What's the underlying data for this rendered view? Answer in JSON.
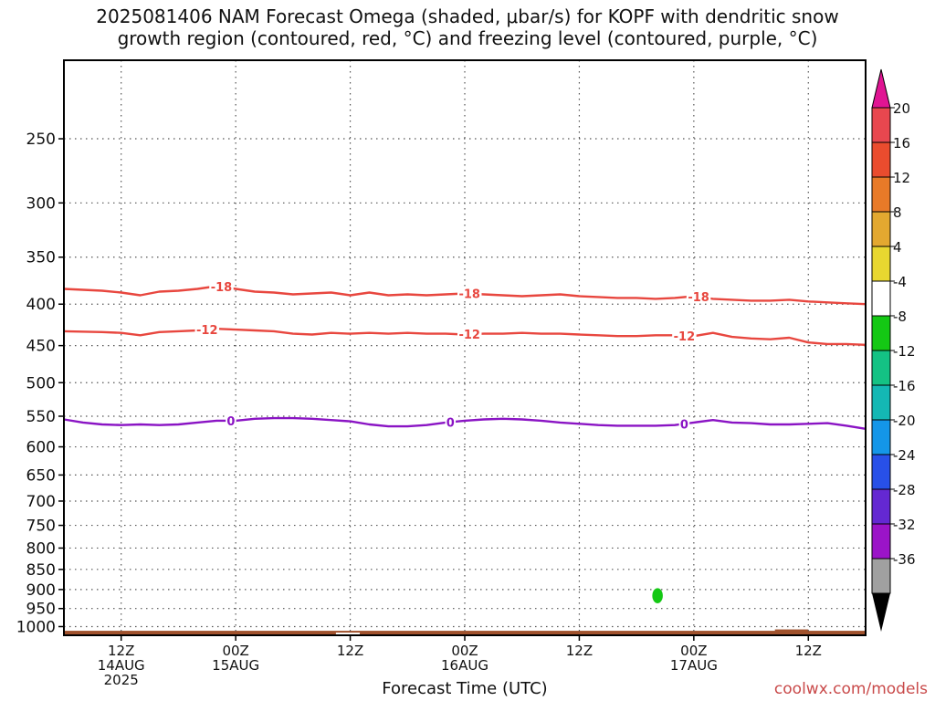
{
  "title_line1": "2025081406 NAM Forecast Omega (shaded, μbar/s) for KOPF with dendritic snow",
  "title_line2": "growth region (contoured, red, °C) and freezing level (contoured, purple, °C)",
  "credit": "coolwx.com/models",
  "chart_data": {
    "type": "heatmap",
    "xlabel": "Forecast Time (UTC)",
    "ylabel": "",
    "x_unit": "hours",
    "xlim": [
      6,
      90
    ],
    "ylim": [
      1025,
      200
    ],
    "y_scale": "log-pressure",
    "grid": true,
    "y_ticks": [
      250,
      300,
      350,
      400,
      450,
      500,
      550,
      600,
      650,
      700,
      750,
      800,
      850,
      900,
      950,
      1000
    ],
    "x_ticks": [
      {
        "x": 12,
        "lines": [
          "12Z",
          "14AUG",
          "2025"
        ]
      },
      {
        "x": 24,
        "lines": [
          "00Z",
          "15AUG"
        ]
      },
      {
        "x": 36,
        "lines": [
          "12Z"
        ]
      },
      {
        "x": 48,
        "lines": [
          "00Z",
          "16AUG"
        ]
      },
      {
        "x": 60,
        "lines": [
          "12Z"
        ]
      },
      {
        "x": 72,
        "lines": [
          "00Z",
          "17AUG"
        ]
      },
      {
        "x": 84,
        "lines": [
          "12Z"
        ]
      }
    ],
    "contours": [
      {
        "level": "-18",
        "color": "#e8473f",
        "x": [
          6,
          10,
          12,
          14,
          16,
          18,
          20,
          22,
          24,
          26,
          28,
          30,
          32,
          34,
          36,
          38,
          40,
          42,
          44,
          46,
          48,
          50,
          52,
          54,
          56,
          58,
          60,
          62,
          64,
          66,
          68,
          70,
          72,
          74,
          76,
          78,
          80,
          82,
          84,
          86,
          88,
          90
        ],
        "p": [
          383,
          385,
          387,
          390,
          386,
          385,
          383,
          380,
          383,
          386,
          387,
          389,
          388,
          387,
          390,
          387,
          390,
          389,
          390,
          389,
          388,
          389,
          390,
          391,
          390,
          389,
          391,
          392,
          393,
          393,
          394,
          393,
          391,
          394,
          395,
          396,
          396,
          395,
          397,
          398,
          399,
          400
        ],
        "labels": [
          {
            "x": 22.5,
            "text": "-18"
          },
          {
            "x": 48.5,
            "text": "-18"
          },
          {
            "x": 72.5,
            "text": "-18"
          }
        ]
      },
      {
        "level": "-12",
        "color": "#e8473f",
        "x": [
          6,
          10,
          12,
          14,
          16,
          18,
          20,
          22,
          24,
          26,
          28,
          30,
          32,
          34,
          36,
          38,
          40,
          42,
          44,
          46,
          48,
          50,
          52,
          54,
          56,
          58,
          60,
          62,
          64,
          66,
          68,
          70,
          72,
          74,
          76,
          78,
          80,
          82,
          84,
          86,
          88,
          90
        ],
        "p": [
          432,
          433,
          434,
          437,
          433,
          432,
          431,
          429,
          430,
          431,
          432,
          435,
          436,
          434,
          435,
          434,
          435,
          434,
          435,
          435,
          436,
          435,
          435,
          434,
          435,
          435,
          436,
          437,
          438,
          438,
          437,
          437,
          438,
          434,
          439,
          441,
          442,
          440,
          446,
          448,
          448,
          449
        ],
        "labels": [
          {
            "x": 21,
            "text": "-12"
          },
          {
            "x": 48.5,
            "text": "-12"
          },
          {
            "x": 71,
            "text": "-12"
          }
        ]
      },
      {
        "level": "0",
        "color": "#8a14c4",
        "x": [
          6,
          8,
          10,
          12,
          14,
          16,
          18,
          20,
          22,
          24,
          26,
          28,
          30,
          32,
          34,
          36,
          38,
          40,
          42,
          44,
          46,
          48,
          50,
          52,
          54,
          56,
          58,
          60,
          62,
          64,
          66,
          68,
          70,
          72,
          74,
          76,
          78,
          80,
          82,
          84,
          86,
          88,
          90
        ],
        "p": [
          555,
          560,
          563,
          564,
          563,
          564,
          563,
          560,
          557,
          557,
          554,
          553,
          553,
          554,
          556,
          558,
          563,
          566,
          566,
          564,
          560,
          557,
          555,
          554,
          555,
          557,
          560,
          562,
          564,
          565,
          565,
          565,
          564,
          560,
          556,
          560,
          561,
          563,
          563,
          562,
          561,
          565,
          570
        ],
        "labels": [
          {
            "x": 23.5,
            "text": "0"
          },
          {
            "x": 46.5,
            "text": "0"
          },
          {
            "x": 71,
            "text": "0"
          }
        ]
      }
    ],
    "shaded_regions": [
      {
        "omega": -6,
        "color": "#14c814",
        "x_center": 68.2,
        "p_center": 916,
        "x_halfwidth": 0.55,
        "p_halfwidth": 20
      }
    ],
    "ground": {
      "color": "#a0522d",
      "p_top": 1012,
      "p_bottom": 1025
    },
    "colorbar": {
      "levels": [
        20,
        16,
        12,
        8,
        4,
        -4,
        -8,
        -12,
        -16,
        -20,
        -24,
        -28,
        -32,
        -36
      ],
      "colors": [
        "#e8474f",
        "#ea4c2e",
        "#e87a28",
        "#e3a830",
        "#e8d730",
        "#ffffff",
        "#14c814",
        "#14c284",
        "#14b8b4",
        "#1496e8",
        "#2850e8",
        "#6428d2",
        "#9b14c8",
        "#a0a0a0"
      ],
      "top_arrow_color": "#e01493",
      "bottom_arrow_color": "#000000"
    }
  }
}
